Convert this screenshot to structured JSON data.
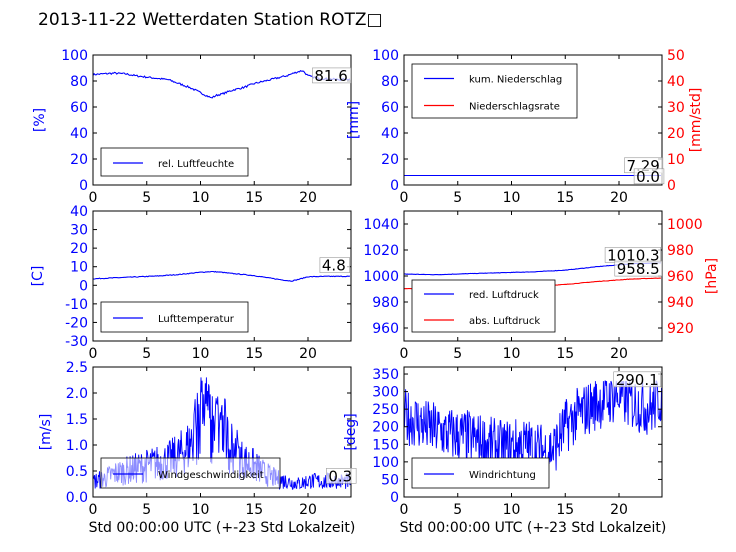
{
  "title": "2013-11-22 Wetterdaten Station ROTZ□",
  "colors": {
    "primary": "#0000ff",
    "secondary": "#ff0000",
    "text": "#000000",
    "frame": "#000000"
  },
  "xlabel": "Std 00:00:00 UTC (+-23 Std Lokalzeit)",
  "chart_data": [
    {
      "id": "humidity",
      "type": "line",
      "ylabel": "[%]",
      "xlim": [
        0,
        24
      ],
      "ylim": [
        0,
        100
      ],
      "xticks": [
        0,
        5,
        10,
        15,
        20
      ],
      "yticks": [
        0,
        20,
        40,
        60,
        80,
        100
      ],
      "legend_placement": "lower-left",
      "series": [
        {
          "name": "rel. Luftfeuchte",
          "color": "#0000ff",
          "x": [
            0,
            1,
            2,
            3,
            4,
            5,
            6,
            7,
            8,
            9,
            10,
            10.5,
            11,
            11.5,
            12,
            13,
            14,
            15,
            16,
            17,
            18,
            19,
            19.5,
            20,
            21,
            22,
            23,
            24
          ],
          "y": [
            85,
            85.5,
            86,
            85.5,
            84,
            83,
            82,
            81,
            78,
            75,
            71,
            69,
            67,
            69,
            70,
            73,
            75,
            78,
            80,
            82,
            84,
            87,
            88,
            84,
            82,
            81.5,
            81,
            81.6
          ]
        }
      ],
      "annotations": [
        "81.6"
      ]
    },
    {
      "id": "rain",
      "type": "line",
      "ylabel": "[mm]",
      "y2label": "[mm/std]",
      "xlim": [
        0,
        24
      ],
      "ylim": [
        0,
        100
      ],
      "y2lim": [
        0,
        50
      ],
      "xticks": [
        0,
        5,
        10,
        15,
        20
      ],
      "yticks": [
        0,
        20,
        40,
        60,
        80,
        100
      ],
      "y2ticks": [
        0,
        10,
        20,
        30,
        40,
        50
      ],
      "legend_placement": "top-left",
      "series": [
        {
          "name": "kum. Niederschlag",
          "color": "#0000ff",
          "axis": "left",
          "x": [
            0,
            24
          ],
          "y": [
            7.29,
            7.29
          ]
        },
        {
          "name": "Niederschlagsrate",
          "color": "#ff0000",
          "axis": "right",
          "x": [
            0,
            24
          ],
          "y": [
            0.0,
            0.0
          ]
        }
      ],
      "annotations": [
        "7.29",
        "0.0"
      ]
    },
    {
      "id": "temperature",
      "type": "line",
      "ylabel": "[C]",
      "xlim": [
        0,
        24
      ],
      "ylim": [
        -30,
        40
      ],
      "xticks": [
        0,
        5,
        10,
        15,
        20
      ],
      "yticks": [
        -30,
        -20,
        -10,
        0,
        10,
        20,
        30,
        40
      ],
      "legend_placement": "lower-left",
      "series": [
        {
          "name": "Lufttemperatur",
          "color": "#0000ff",
          "x": [
            0,
            2,
            4,
            6,
            8,
            10,
            11,
            12,
            13,
            14,
            15,
            16,
            17,
            18,
            18.5,
            19,
            20,
            22,
            24
          ],
          "y": [
            3.5,
            4,
            4.5,
            5,
            5.8,
            7,
            7.4,
            7,
            6.3,
            5.8,
            5.2,
            4.3,
            3.4,
            2.6,
            2.3,
            3,
            4.6,
            4.8,
            4.8
          ]
        }
      ],
      "annotations": [
        "4.8"
      ]
    },
    {
      "id": "pressure",
      "type": "line",
      "y2label": "[hPa]",
      "xlim": [
        0,
        24
      ],
      "ylim": [
        950,
        1050
      ],
      "y2lim": [
        910,
        1010
      ],
      "xticks": [
        0,
        5,
        10,
        15,
        20
      ],
      "yticks": [
        960,
        980,
        1000,
        1020,
        1040
      ],
      "y2ticks": [
        920,
        940,
        960,
        980,
        1000
      ],
      "legend_placement": "lower-left",
      "series": [
        {
          "name": "red. Luftdruck",
          "color": "#0000ff",
          "axis": "left",
          "x": [
            0,
            3,
            6,
            9,
            12,
            15,
            18,
            21,
            24
          ],
          "y": [
            1001.5,
            1001,
            1001.8,
            1002.5,
            1003.2,
            1004.5,
            1007.2,
            1009.3,
            1010.3
          ]
        },
        {
          "name": "abs. Luftdruck",
          "color": "#ff0000",
          "axis": "right",
          "x": [
            0,
            3,
            6,
            9,
            12,
            15,
            18,
            21,
            24
          ],
          "y": [
            950.3,
            950,
            950.5,
            951.2,
            952,
            953.5,
            955.8,
            957.6,
            958.5
          ]
        }
      ],
      "annotations": [
        "1010.3",
        "958.5"
      ]
    },
    {
      "id": "wind",
      "type": "line",
      "ylabel": "[m/s]",
      "xlim": [
        0,
        24
      ],
      "ylim": [
        0,
        2.5
      ],
      "xticks": [
        0,
        5,
        10,
        15,
        20
      ],
      "yticks": [
        0.0,
        0.5,
        1.0,
        1.5,
        2.0,
        2.5
      ],
      "legend_placement": "lower-left",
      "series": [
        {
          "name": "Windgeschwindigkeit",
          "color": "#0000ff",
          "x": [
            0,
            1,
            2,
            3,
            4,
            5,
            6,
            7,
            8,
            9,
            9.5,
            10,
            10.5,
            11,
            12,
            13,
            14,
            15,
            16,
            17,
            18,
            19,
            20,
            21,
            22,
            23,
            24
          ],
          "y": [
            0.3,
            0.35,
            0.45,
            0.5,
            0.55,
            0.6,
            0.65,
            0.7,
            0.8,
            1.0,
            1.3,
            1.5,
            1.6,
            1.4,
            1.2,
            0.9,
            0.7,
            0.6,
            0.45,
            0.35,
            0.3,
            0.25,
            0.3,
            0.3,
            0.3,
            0.3,
            0.3
          ],
          "peak_values": [
            1.6,
            2.0,
            2.3,
            2.3,
            2.2,
            1.8,
            1.5
          ]
        }
      ],
      "annotations": [
        "0.3"
      ]
    },
    {
      "id": "wind-direction",
      "type": "line",
      "ylabel": "[deg]",
      "xlim": [
        0,
        24
      ],
      "ylim": [
        0,
        370
      ],
      "xticks": [
        0,
        5,
        10,
        15,
        20
      ],
      "yticks": [
        0,
        50,
        100,
        150,
        200,
        250,
        300,
        350
      ],
      "legend_placement": "lower-left",
      "series": [
        {
          "name": "Windrichtung",
          "color": "#0000ff",
          "x": [
            0,
            1,
            2,
            3,
            4,
            5,
            6,
            7,
            8,
            9,
            10,
            11,
            12,
            13,
            14,
            15,
            16,
            17,
            18,
            19,
            20,
            21,
            22,
            23,
            24
          ],
          "y": [
            230,
            220,
            200,
            190,
            180,
            175,
            170,
            160,
            150,
            140,
            145,
            150,
            140,
            130,
            140,
            200,
            230,
            250,
            270,
            280,
            290,
            270,
            260,
            250,
            290
          ]
        }
      ],
      "annotations": [
        "290.1"
      ]
    }
  ]
}
